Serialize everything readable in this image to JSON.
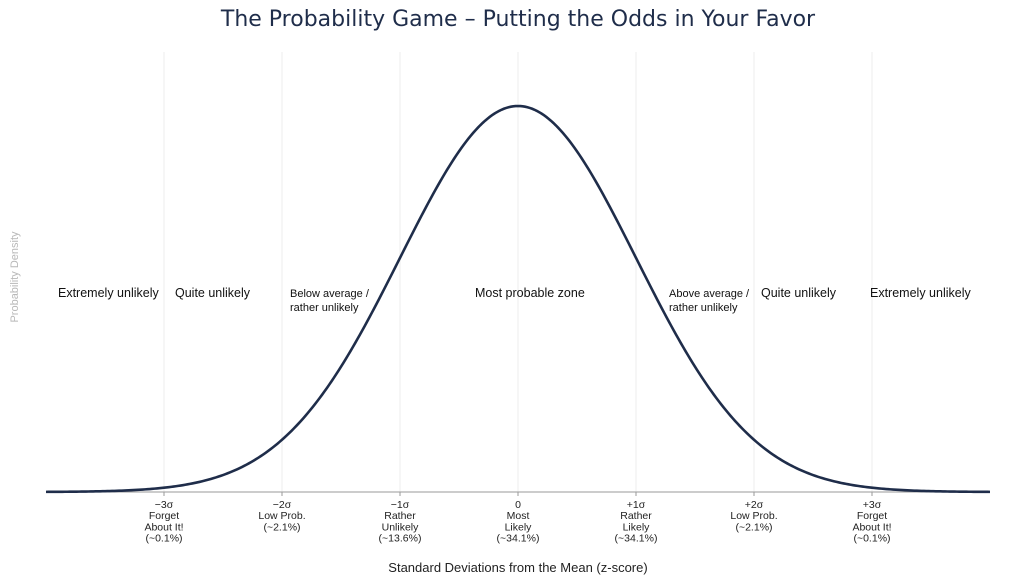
{
  "chart_data": {
    "type": "line",
    "title": "The Probability Game – Putting the Odds in Your Favor",
    "xlabel": "Standard Deviations from the Mean (z-score)",
    "ylabel": "Probability Density",
    "xlim": [
      -4,
      4
    ],
    "ylim": [
      0,
      0.4
    ],
    "grid": "vertical",
    "curve": {
      "function": "standard-normal-pdf",
      "mean": 0,
      "sd": 1
    },
    "ticks": [
      {
        "z": -3,
        "lines": [
          "−3σ",
          "Forget",
          "About It!",
          "(~0.1%)"
        ]
      },
      {
        "z": -2,
        "lines": [
          "−2σ",
          "Low Prob.",
          "(~2.1%)"
        ]
      },
      {
        "z": -1,
        "lines": [
          "−1σ",
          "Rather",
          "Unlikely",
          "(~13.6%)"
        ]
      },
      {
        "z": 0,
        "lines": [
          "0",
          "Most",
          "Likely",
          "(~34.1%)"
        ]
      },
      {
        "z": 1,
        "lines": [
          "+1σ",
          "Rather",
          "Likely",
          "(~34.1%)"
        ]
      },
      {
        "z": 2,
        "lines": [
          "+2σ",
          "Low Prob.",
          "(~2.1%)"
        ]
      },
      {
        "z": 3,
        "lines": [
          "+3σ",
          "Forget",
          "About It!",
          "(~0.1%)"
        ]
      }
    ],
    "zones": [
      {
        "key": "extremely-unlikely-left",
        "lines": [
          "Extremely unlikely"
        ]
      },
      {
        "key": "quite-unlikely-left",
        "lines": [
          "Quite unlikely"
        ]
      },
      {
        "key": "below-average",
        "lines": [
          "Below average /",
          "rather unlikely"
        ]
      },
      {
        "key": "most-probable",
        "lines": [
          "Most probable zone"
        ]
      },
      {
        "key": "above-average",
        "lines": [
          "Above average /",
          "rather unlikely"
        ]
      },
      {
        "key": "quite-unlikely-right",
        "lines": [
          "Quite unlikely"
        ]
      },
      {
        "key": "extremely-unlikely-right",
        "lines": [
          "Extremely unlikely"
        ]
      }
    ],
    "colors": {
      "curve": "#1f2d4a",
      "grid": "#eeeeee",
      "axis": "#9a9a9a",
      "title": "#1f2d4a"
    }
  }
}
